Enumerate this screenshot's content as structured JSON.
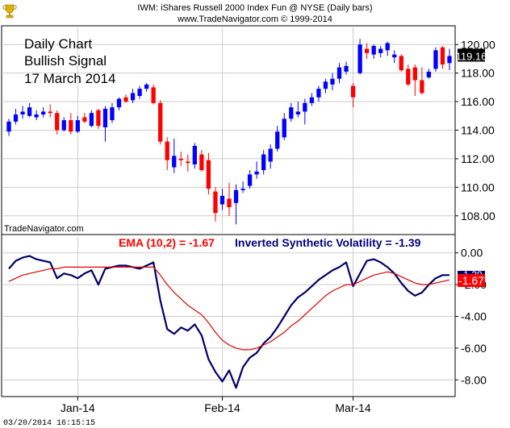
{
  "header": {
    "line1": "IWM:  iShares Russell 2000 Index Fun @ NYSE  (Daily bars)",
    "line2": "www.TradeNavigator.com © 1999-2014"
  },
  "annotation": {
    "line1": "Daily Chart",
    "line2": "Bullish Signal",
    "line3": "17 March 2014"
  },
  "watermark": "TradeNavigator.com",
  "timestamp": "03/20/2014 16:15:15",
  "colors": {
    "up": "#0000ff",
    "down": "#ff0000",
    "price_flag_bg": "#000000",
    "isv_line": "#000066",
    "ema_line": "#dd0000",
    "ema_flag_bg": "#ff0000",
    "grid": "#cccccc",
    "ema_label": "#ff0000",
    "isv_label": "#000080"
  },
  "chart_data": [
    {
      "type": "candlestick",
      "ylim": [
        106.8,
        121.2
      ],
      "y_ticks": [
        "108.00",
        "110.00",
        "112.00",
        "114.00",
        "116.00",
        "118.00",
        "120.00"
      ],
      "last_price_label": "119.16",
      "grid": true,
      "x_labels": [
        {
          "label": "Jan-14",
          "bar_index": 10
        },
        {
          "label": "Feb-14",
          "bar_index": 31
        },
        {
          "label": "Mar-14",
          "bar_index": 50
        }
      ],
      "bars": [
        {
          "o": 113.9,
          "h": 114.8,
          "l": 113.6,
          "c": 114.6
        },
        {
          "o": 114.6,
          "h": 115.5,
          "l": 114.4,
          "c": 115.1
        },
        {
          "o": 115.1,
          "h": 115.7,
          "l": 114.8,
          "c": 115.3
        },
        {
          "o": 115.0,
          "h": 115.9,
          "l": 114.9,
          "c": 115.6
        },
        {
          "o": 114.9,
          "h": 115.4,
          "l": 114.7,
          "c": 115.1
        },
        {
          "o": 115.1,
          "h": 115.6,
          "l": 114.9,
          "c": 115.3
        },
        {
          "o": 115.3,
          "h": 115.8,
          "l": 114.9,
          "c": 115.2
        },
        {
          "o": 115.2,
          "h": 115.4,
          "l": 113.7,
          "c": 114.0
        },
        {
          "o": 114.0,
          "h": 114.9,
          "l": 113.9,
          "c": 114.7
        },
        {
          "o": 114.7,
          "h": 115.2,
          "l": 113.7,
          "c": 113.9
        },
        {
          "o": 113.9,
          "h": 115.0,
          "l": 113.8,
          "c": 114.7
        },
        {
          "o": 114.9,
          "h": 115.2,
          "l": 114.5,
          "c": 114.6
        },
        {
          "o": 114.3,
          "h": 115.4,
          "l": 114.2,
          "c": 115.2
        },
        {
          "o": 115.4,
          "h": 115.5,
          "l": 114.1,
          "c": 114.3
        },
        {
          "o": 114.2,
          "h": 115.7,
          "l": 113.2,
          "c": 115.5
        },
        {
          "o": 114.7,
          "h": 115.9,
          "l": 114.5,
          "c": 115.6
        },
        {
          "o": 115.6,
          "h": 116.3,
          "l": 115.4,
          "c": 116.2
        },
        {
          "o": 116.3,
          "h": 116.5,
          "l": 115.9,
          "c": 116.0
        },
        {
          "o": 116.1,
          "h": 116.9,
          "l": 115.9,
          "c": 116.6
        },
        {
          "o": 116.4,
          "h": 117.1,
          "l": 116.2,
          "c": 116.9
        },
        {
          "o": 116.9,
          "h": 117.3,
          "l": 116.7,
          "c": 117.2
        },
        {
          "o": 117.0,
          "h": 117.2,
          "l": 115.8,
          "c": 115.9
        },
        {
          "o": 115.9,
          "h": 116.1,
          "l": 113.0,
          "c": 113.2
        },
        {
          "o": 113.2,
          "h": 113.5,
          "l": 111.2,
          "c": 111.9
        },
        {
          "o": 111.4,
          "h": 113.4,
          "l": 111.0,
          "c": 112.2
        },
        {
          "o": 112.0,
          "h": 112.5,
          "l": 111.5,
          "c": 111.9
        },
        {
          "o": 111.8,
          "h": 112.3,
          "l": 111.1,
          "c": 111.7
        },
        {
          "o": 111.6,
          "h": 113.1,
          "l": 111.3,
          "c": 112.9
        },
        {
          "o": 112.3,
          "h": 112.6,
          "l": 111.1,
          "c": 111.2
        },
        {
          "o": 111.9,
          "h": 112.4,
          "l": 109.5,
          "c": 109.9
        },
        {
          "o": 109.7,
          "h": 110.0,
          "l": 107.6,
          "c": 108.2
        },
        {
          "o": 108.8,
          "h": 109.9,
          "l": 108.4,
          "c": 109.4
        },
        {
          "o": 109.2,
          "h": 110.3,
          "l": 108.0,
          "c": 108.6
        },
        {
          "o": 108.9,
          "h": 110.2,
          "l": 107.4,
          "c": 109.8
        },
        {
          "o": 109.8,
          "h": 110.4,
          "l": 109.6,
          "c": 109.9
        },
        {
          "o": 110.1,
          "h": 111.2,
          "l": 109.9,
          "c": 110.9
        },
        {
          "o": 110.9,
          "h": 111.8,
          "l": 110.6,
          "c": 111.1
        },
        {
          "o": 111.2,
          "h": 112.6,
          "l": 110.9,
          "c": 112.3
        },
        {
          "o": 111.8,
          "h": 113.0,
          "l": 111.3,
          "c": 112.7
        },
        {
          "o": 112.7,
          "h": 114.3,
          "l": 112.5,
          "c": 113.9
        },
        {
          "o": 113.5,
          "h": 115.2,
          "l": 113.3,
          "c": 114.8
        },
        {
          "o": 114.8,
          "h": 115.9,
          "l": 114.6,
          "c": 115.6
        },
        {
          "o": 115.1,
          "h": 116.0,
          "l": 114.9,
          "c": 115.3
        },
        {
          "o": 115.3,
          "h": 116.2,
          "l": 114.4,
          "c": 115.9
        },
        {
          "o": 115.9,
          "h": 116.6,
          "l": 115.7,
          "c": 116.3
        },
        {
          "o": 116.3,
          "h": 117.1,
          "l": 116.0,
          "c": 116.9
        },
        {
          "o": 116.9,
          "h": 117.6,
          "l": 116.6,
          "c": 117.4
        },
        {
          "o": 117.2,
          "h": 118.0,
          "l": 116.8,
          "c": 117.6
        },
        {
          "o": 117.6,
          "h": 118.7,
          "l": 117.3,
          "c": 118.4
        },
        {
          "o": 118.1,
          "h": 118.8,
          "l": 117.9,
          "c": 118.5
        },
        {
          "o": 117.1,
          "h": 117.3,
          "l": 115.6,
          "c": 116.3
        },
        {
          "o": 118.0,
          "h": 120.4,
          "l": 117.9,
          "c": 120.0
        },
        {
          "o": 119.7,
          "h": 120.1,
          "l": 119.0,
          "c": 119.4
        },
        {
          "o": 119.3,
          "h": 120.0,
          "l": 119.0,
          "c": 119.9
        },
        {
          "o": 119.4,
          "h": 119.9,
          "l": 119.1,
          "c": 119.7
        },
        {
          "o": 119.6,
          "h": 120.2,
          "l": 119.2,
          "c": 120.1
        },
        {
          "o": 119.1,
          "h": 119.6,
          "l": 118.7,
          "c": 119.3
        },
        {
          "o": 119.2,
          "h": 119.3,
          "l": 118.1,
          "c": 118.2
        },
        {
          "o": 118.3,
          "h": 118.6,
          "l": 117.1,
          "c": 117.2
        },
        {
          "o": 118.4,
          "h": 118.6,
          "l": 116.4,
          "c": 117.5
        },
        {
          "o": 117.5,
          "h": 118.4,
          "l": 116.5,
          "c": 116.6
        },
        {
          "o": 117.7,
          "h": 118.3,
          "l": 117.6,
          "c": 118.1
        },
        {
          "o": 118.3,
          "h": 119.8,
          "l": 118.1,
          "c": 119.6
        },
        {
          "o": 119.8,
          "h": 119.9,
          "l": 118.3,
          "c": 118.6
        },
        {
          "o": 118.7,
          "h": 119.7,
          "l": 118.2,
          "c": 119.2
        }
      ]
    },
    {
      "type": "line",
      "ylim": [
        -9.0,
        1.0
      ],
      "y_ticks": [
        "0.00",
        "-2.00",
        "-4.00",
        "-6.00",
        "-8.00"
      ],
      "grid": true,
      "ema_label": "EMA (10,2) = -1.67",
      "isv_label": "Inverted Synthetic Volatility = -1.39",
      "isv_flag": "-1.39",
      "ema_flag": "-1.67",
      "series": [
        {
          "name": "Inverted Synthetic Volatility",
          "values": [
            -1.0,
            -0.5,
            -0.3,
            -0.2,
            -0.4,
            -0.5,
            -0.6,
            -1.6,
            -1.3,
            -1.4,
            -1.6,
            -1.3,
            -1.1,
            -2.0,
            -1.0,
            -0.9,
            -0.8,
            -0.8,
            -0.9,
            -1.0,
            -0.8,
            -0.6,
            -3.0,
            -4.8,
            -5.1,
            -4.7,
            -4.9,
            -4.5,
            -5.2,
            -6.7,
            -7.5,
            -8.1,
            -7.4,
            -8.5,
            -7.2,
            -6.6,
            -6.3,
            -5.7,
            -5.3,
            -4.7,
            -4.0,
            -3.3,
            -2.8,
            -2.5,
            -2.1,
            -1.7,
            -1.4,
            -1.1,
            -0.9,
            -0.6,
            -2.1,
            -1.3,
            -0.5,
            -0.4,
            -0.6,
            -0.9,
            -1.3,
            -1.9,
            -2.4,
            -2.7,
            -2.5,
            -2.0,
            -1.6,
            -1.4,
            -1.4
          ]
        },
        {
          "name": "EMA (10,2)",
          "values": [
            -1.8,
            -1.6,
            -1.4,
            -1.3,
            -1.2,
            -1.1,
            -1.0,
            -1.0,
            -0.9,
            -0.9,
            -0.9,
            -0.9,
            -0.9,
            -0.9,
            -0.9,
            -0.9,
            -0.9,
            -0.9,
            -0.9,
            -0.9,
            -0.9,
            -0.9,
            -1.4,
            -2.0,
            -2.5,
            -2.9,
            -3.3,
            -3.6,
            -3.9,
            -4.4,
            -5.0,
            -5.5,
            -5.8,
            -6.0,
            -6.1,
            -6.1,
            -6.0,
            -5.8,
            -5.6,
            -5.3,
            -5.0,
            -4.6,
            -4.3,
            -3.9,
            -3.5,
            -3.1,
            -2.7,
            -2.4,
            -2.2,
            -2.0,
            -2.0,
            -1.8,
            -1.6,
            -1.4,
            -1.3,
            -1.2,
            -1.3,
            -1.5,
            -1.7,
            -1.9,
            -2.0,
            -2.0,
            -1.9,
            -1.8,
            -1.7
          ]
        }
      ]
    }
  ]
}
